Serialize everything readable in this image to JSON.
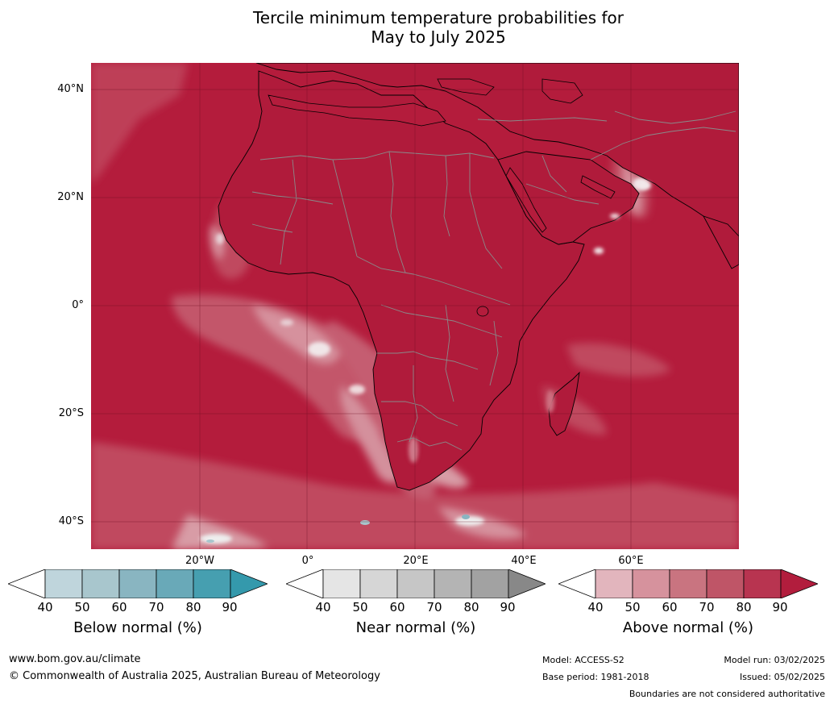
{
  "title_line1": "Tercile minimum temperature probabilities for",
  "title_line2": "May to July 2025",
  "lat_labels": [
    "40°N",
    "20°N",
    "0°",
    "20°S",
    "40°S"
  ],
  "lon_labels": [
    "20°W",
    "0°",
    "20°E",
    "40°E",
    "60°E"
  ],
  "colorbars": [
    {
      "name": "below",
      "caption": "Below normal (%)",
      "ticks": [
        "40",
        "50",
        "60",
        "70",
        "80",
        "90"
      ],
      "colors": [
        "#bfd5dc",
        "#a8c6cd",
        "#89b5c1",
        "#69a9b8",
        "#469fb0"
      ],
      "extend_color": "#3499ac"
    },
    {
      "name": "near",
      "caption": "Near normal (%)",
      "ticks": [
        "40",
        "50",
        "60",
        "70",
        "80",
        "90"
      ],
      "colors": [
        "#e5e5e5",
        "#d6d6d6",
        "#c6c6c6",
        "#b4b4b4",
        "#a2a2a2"
      ],
      "extend_color": "#888888"
    },
    {
      "name": "above",
      "caption": "Above normal (%)",
      "ticks": [
        "40",
        "50",
        "60",
        "70",
        "80",
        "90"
      ],
      "colors": [
        "#e2b5bd",
        "#d6929d",
        "#c97480",
        "#bf5567",
        "#b83450"
      ],
      "extend_color": "#b21d3d"
    }
  ],
  "footer": {
    "url": "www.bom.gov.au/climate",
    "copyright": "© Commonwealth of Australia 2025, Australian Bureau of Meteorology",
    "model": "Model: ACCESS-S2",
    "base_period": "Base period: 1981-2018",
    "model_run": "Model run: 03/02/2025",
    "issued": "Issued: 05/02/2025",
    "boundaries_note": "Boundaries are not considered authoritative"
  },
  "colors": {
    "map_background": "#b51d3c",
    "land_tint": "#ad1b3a",
    "border_grey": "#8a8a8a",
    "coastline": "#000000"
  }
}
